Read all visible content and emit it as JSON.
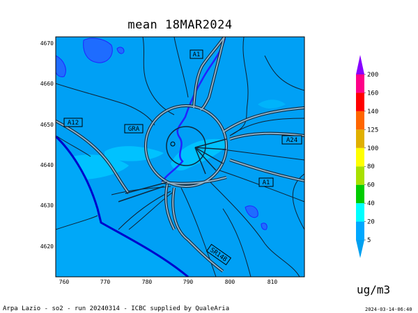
{
  "title": "mean 18MAR2024",
  "unit_label": "ug/m3",
  "footer": "Arpa Lazio - so2 - run 20240314 - ICBC supplied by QualeAria",
  "timestamp": "2024-03-14-06:40",
  "x_ticks": [
    "760",
    "770",
    "780",
    "790",
    "800",
    "810"
  ],
  "y_ticks": [
    "4670",
    "4660",
    "4650",
    "4640",
    "4630",
    "4620"
  ],
  "roads": [
    {
      "name": "A1"
    },
    {
      "name": "A12"
    },
    {
      "name": "GRA"
    },
    {
      "name": "A24"
    },
    {
      "name": "A1"
    },
    {
      "name": "SR148"
    }
  ],
  "colorbar": {
    "levels": [
      "5",
      "20",
      "40",
      "60",
      "80",
      "100",
      "125",
      "140",
      "160",
      "200"
    ],
    "colors": [
      "#00a8ff",
      "#00ffff",
      "#00cc00",
      "#a8e000",
      "#ffff00",
      "#e0b000",
      "#ff6600",
      "#ff0000",
      "#ff0088",
      "#aa00ff"
    ],
    "below_color": "#00a0f0",
    "above_color": "#8800ff"
  },
  "colors": {
    "background_field": "#00a0f5",
    "light_field": "#00c2ff",
    "water": "#1840ff",
    "coast": "#0000cc"
  }
}
